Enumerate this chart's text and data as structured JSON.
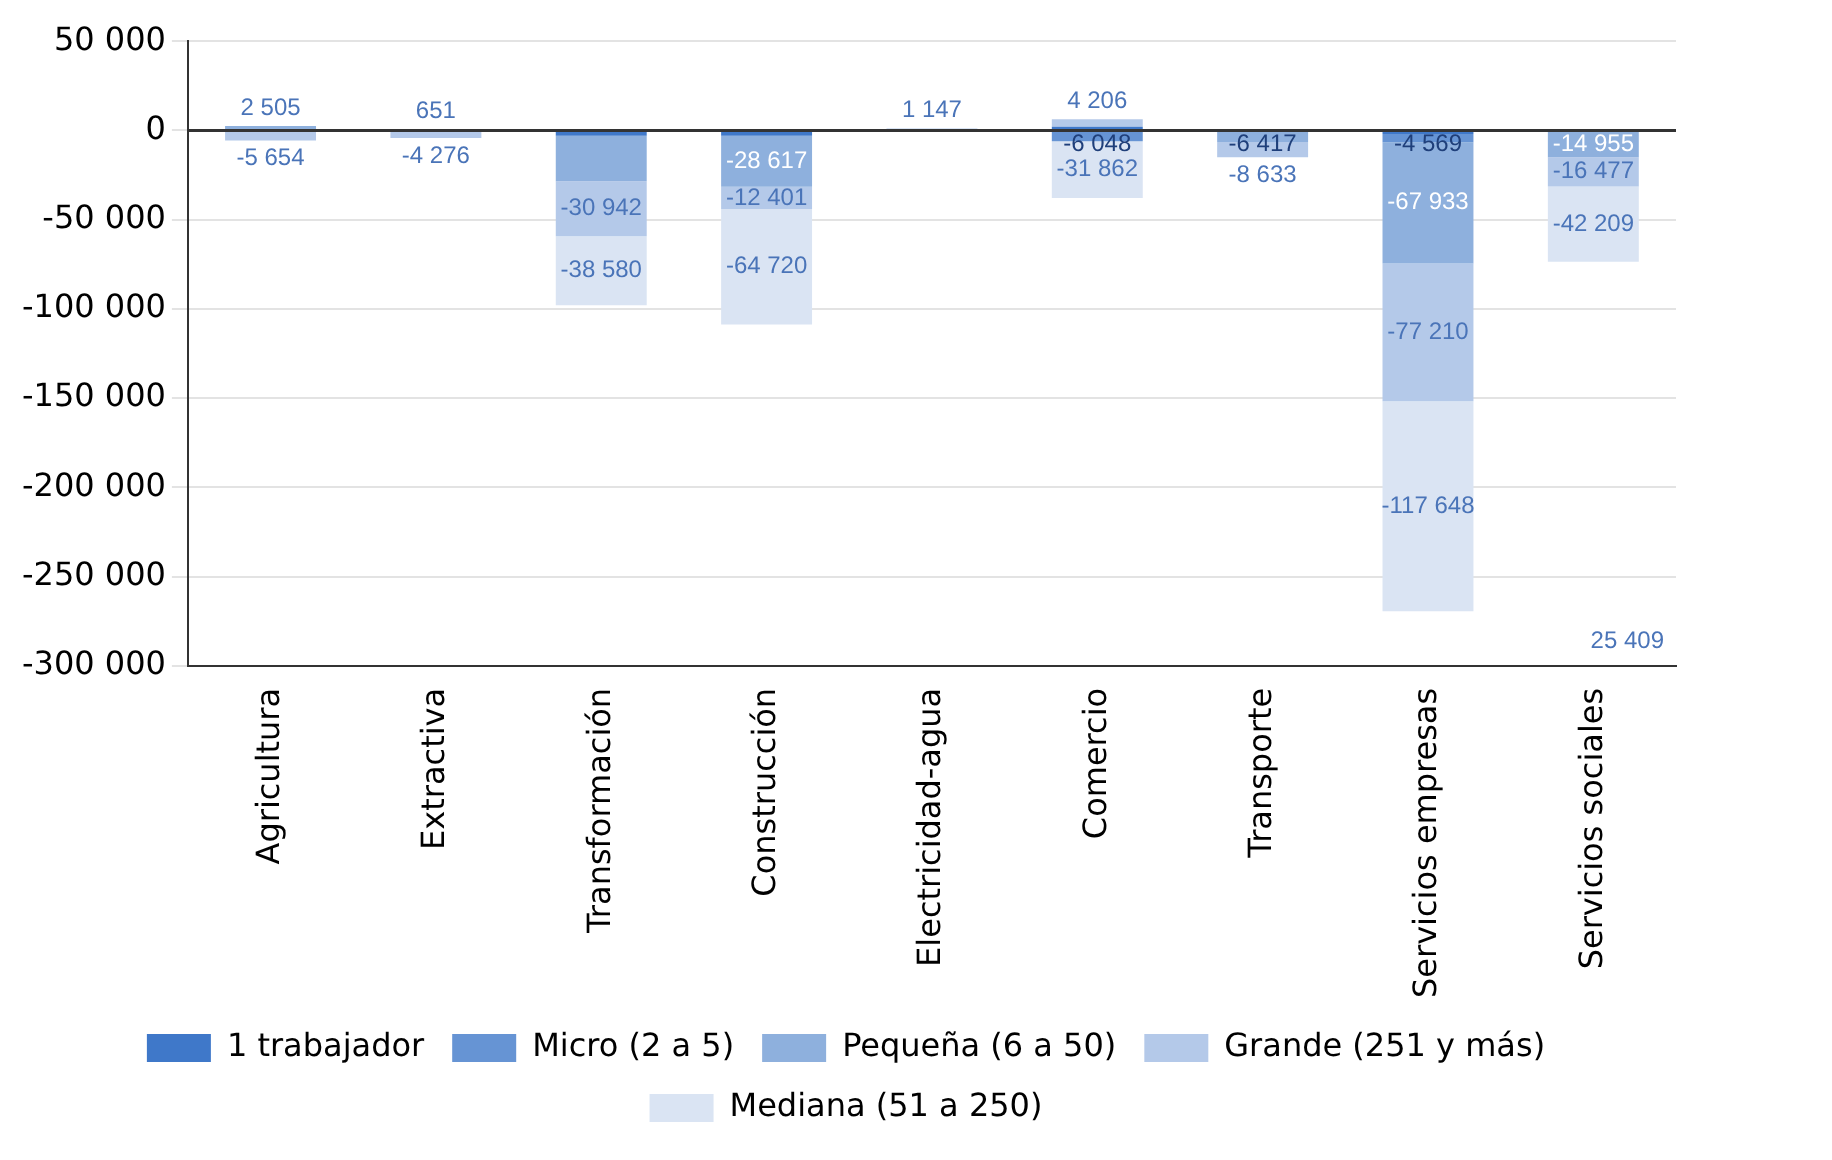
{
  "chart_data": {
    "type": "bar",
    "stacked": true,
    "categories": [
      "Agricultura",
      "Extractiva",
      "Transformación",
      "Construcción",
      "Electricidad-agua",
      "Comercio",
      "Transporte",
      "Servicios empresas",
      "Servicios sociales"
    ],
    "series": [
      {
        "name": "1 trabajador",
        "color": "#3f78c9",
        "values": [
          null,
          null,
          -3000,
          -3000,
          null,
          2000,
          null,
          -2000,
          null
        ],
        "value_labels": [
          null,
          null,
          null,
          null,
          null,
          null,
          null,
          null,
          null
        ]
      },
      {
        "name": "Micro (2 a 5)",
        "color": "#6694d4",
        "values": [
          null,
          null,
          null,
          null,
          null,
          -6048,
          null,
          -4569,
          null
        ],
        "value_labels": [
          null,
          null,
          null,
          null,
          null,
          "-6 048",
          null,
          "-4 569",
          null
        ]
      },
      {
        "name": "Pequeña (6 a 50)",
        "color": "#8eb0dd",
        "values": [
          2505,
          651,
          -25409,
          -28617,
          null,
          null,
          -6417,
          -67933,
          -14955
        ],
        "value_labels": [
          "2 505",
          "651",
          null,
          "-28 617",
          null,
          null,
          "-6 417",
          "-67 933",
          "-14 955"
        ]
      },
      {
        "name": "Grande (251 y más)",
        "color": "#b4c9e9",
        "values": [
          -5654,
          -4276,
          -30942,
          -12401,
          1147,
          4206,
          -8633,
          -77210,
          -16477
        ],
        "value_labels": [
          "-5 654",
          "-4 276",
          "-30 942",
          "-12 401",
          "1 147",
          "4 206",
          "-8 633",
          "-77 210",
          "-16 477"
        ]
      },
      {
        "name": "Mediana (51 a 250)",
        "color": "#dae4f3",
        "values": [
          null,
          null,
          -38580,
          -64720,
          null,
          -31862,
          null,
          -117648,
          -42209
        ],
        "value_labels": [
          null,
          null,
          "-38 580",
          "-64 720",
          null,
          "-31 862",
          null,
          "-117 648",
          "-42 209"
        ]
      }
    ],
    "ylim": [
      -300000,
      50000
    ],
    "yticks": [
      {
        "value": -300000,
        "label": "-300 000"
      },
      {
        "value": -250000,
        "label": "-250 000"
      },
      {
        "value": -200000,
        "label": "-200 000"
      },
      {
        "value": -150000,
        "label": "-150 000"
      },
      {
        "value": -100000,
        "label": "-100 000"
      },
      {
        "value": -50000,
        "label": "-50 000"
      },
      0,
      {
        "value": 50000,
        "label": "50 000"
      }
    ],
    "annotations": [
      "25 409"
    ],
    "grid": "y",
    "legend": "bottom"
  }
}
